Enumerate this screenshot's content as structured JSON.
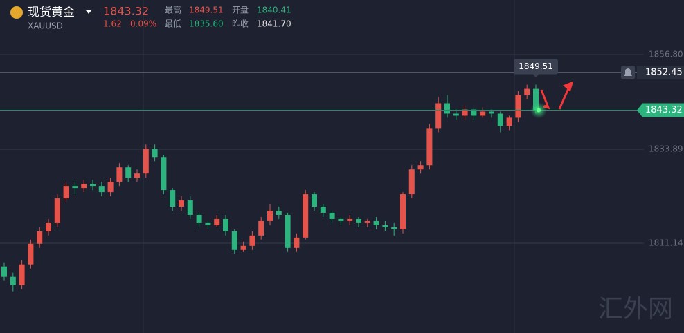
{
  "chart_data": {
    "type": "candlestick",
    "quote": {
      "name": "现货黄金",
      "symbol": "XAUUSD",
      "last": "1843.32",
      "change": "1.62",
      "change_pct": "0.09%",
      "high_label": "最高",
      "high": "1849.51",
      "open_label": "开盘",
      "open": "1840.41",
      "low_label": "最低",
      "low": "1835.60",
      "prev_label": "昨收",
      "prev_close": "1841.70"
    },
    "watermark": "汇外网",
    "up_color": "#e5534b",
    "down_color": "#2db37d",
    "ylim": [
      1789.4,
      1870.0
    ],
    "yticks": [
      {
        "value": 1856.8,
        "label": "1856.80"
      },
      {
        "value": 1833.89,
        "label": "1833.89"
      },
      {
        "value": 1811.14,
        "label": "1811.14"
      }
    ],
    "grid": true,
    "alert_line": 1852.45,
    "open": [
      1805.5,
      1803,
      1801,
      1806,
      1811,
      1814,
      1816,
      1822,
      1825,
      1824.5,
      1825.5,
      1825,
      1823.5,
      1826,
      1829.5,
      1827,
      1828,
      1834,
      1832,
      1824,
      1820,
      1821.5,
      1818,
      1816,
      1815.5,
      1817,
      1814,
      1809.5,
      1810.5,
      1813,
      1816.5,
      1819,
      1818,
      1810,
      1812.5,
      1823,
      1820,
      1818.5,
      1817,
      1816.5,
      1817,
      1816,
      1816.5,
      1815.5,
      1815,
      1814.5,
      1823,
      1829,
      1830,
      1839,
      1845,
      1842.5,
      1842,
      1843.5,
      1842,
      1843,
      1842.5,
      1839.5,
      1841.5,
      1847,
      1848.5
    ],
    "high": [
      1806.5,
      1804,
      1807,
      1812,
      1815,
      1817,
      1823,
      1826,
      1826,
      1826.5,
      1826.5,
      1826,
      1827,
      1830.5,
      1830,
      1829,
      1835,
      1835,
      1832.5,
      1824.5,
      1822.5,
      1822.5,
      1818.5,
      1816.5,
      1818,
      1818,
      1814.5,
      1811.5,
      1814,
      1817.5,
      1820.5,
      1820,
      1818.5,
      1813.5,
      1824,
      1823.5,
      1820.5,
      1819,
      1817.5,
      1818,
      1817.5,
      1817,
      1817.5,
      1816.5,
      1816,
      1823.5,
      1830,
      1831,
      1840,
      1846.5,
      1847,
      1843.5,
      1844.5,
      1844,
      1844,
      1843.5,
      1843,
      1842,
      1848,
      1849.5,
      1849.51
    ],
    "low": [
      1802,
      1799.5,
      1800,
      1805,
      1810,
      1813,
      1815,
      1821,
      1823,
      1823.5,
      1824,
      1822.5,
      1822.5,
      1825,
      1826,
      1826,
      1827,
      1831,
      1823,
      1819,
      1819,
      1817,
      1815,
      1814.5,
      1815,
      1813,
      1808.5,
      1809,
      1809.5,
      1812,
      1815.5,
      1817,
      1809,
      1809,
      1812,
      1819,
      1817.5,
      1816,
      1815.5,
      1815.5,
      1815,
      1815,
      1814.5,
      1814,
      1813,
      1813.5,
      1822,
      1828,
      1829,
      1838,
      1841.5,
      1841,
      1841,
      1841,
      1841.5,
      1841.5,
      1838,
      1838.5,
      1840.5,
      1846,
      1842.5
    ],
    "close": [
      1803,
      1801,
      1806,
      1811,
      1814,
      1816,
      1822,
      1825,
      1824.5,
      1825.5,
      1825,
      1823.5,
      1826,
      1829.5,
      1827,
      1828,
      1834,
      1832,
      1824,
      1820,
      1821.5,
      1818,
      1816,
      1815.5,
      1817,
      1814,
      1809.5,
      1810.5,
      1813,
      1816.5,
      1819,
      1818,
      1810,
      1812.5,
      1823,
      1820,
      1818.5,
      1817,
      1816.5,
      1817,
      1816,
      1816.5,
      1815.5,
      1815,
      1814.5,
      1823,
      1829,
      1830,
      1839,
      1845,
      1842.5,
      1842,
      1843.5,
      1842,
      1843,
      1842.5,
      1839.5,
      1841.5,
      1847,
      1848.5,
      1843.32
    ]
  }
}
